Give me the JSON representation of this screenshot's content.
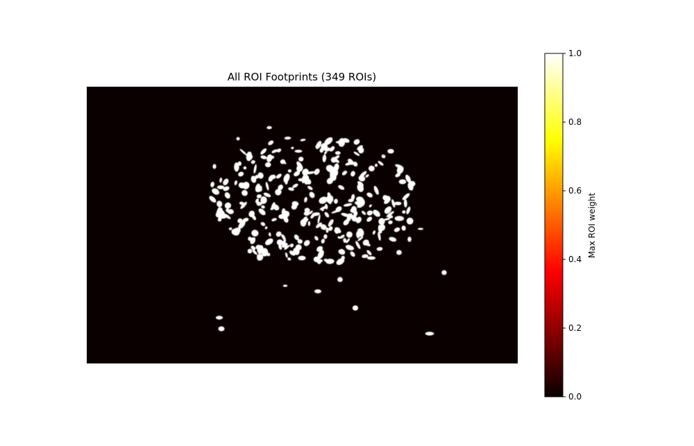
{
  "chart_data": {
    "type": "heatmap",
    "title": "All ROI Footprints (349 ROIs)",
    "axes_visible": false,
    "colormap": "hot",
    "background_value": 0.0,
    "roi_value": 1.0,
    "colorbar": {
      "label": "Max ROI weight",
      "range": [
        0.0,
        1.0
      ],
      "ticks": [
        "0.0",
        "0.2",
        "0.4",
        "0.6",
        "0.8",
        "1.0"
      ],
      "position": "right"
    },
    "roi_count": 349
  }
}
